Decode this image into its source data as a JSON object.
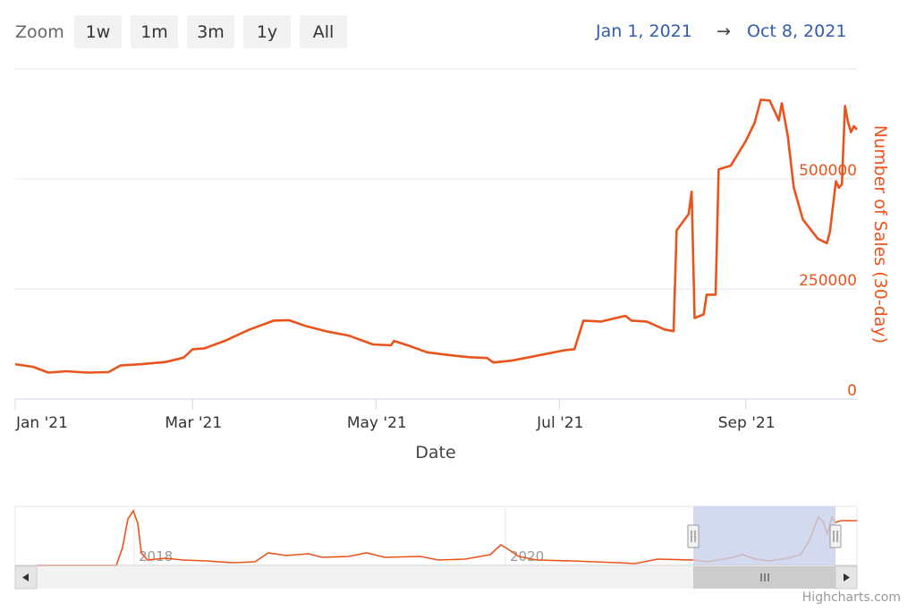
{
  "toolbar": {
    "zoom_label": "Zoom",
    "buttons": [
      "1w",
      "1m",
      "3m",
      "1y",
      "All"
    ],
    "range_from": "Jan 1, 2021",
    "range_arrow": "→",
    "range_to": "Oct 8, 2021"
  },
  "colors": {
    "series": "#e8541c",
    "axis_title": "#e8541c",
    "grid": "#e6e6e6",
    "navigator_mask": "#c8d0ea",
    "range_text": "#335cad"
  },
  "chart_data": {
    "type": "line",
    "title": "",
    "xlabel": "Date",
    "ylabel": "Number of Sales (30-day)",
    "x_tick_labels": [
      "Jan '21",
      "Mar '21",
      "May '21",
      "Jul '21",
      "Sep '21"
    ],
    "y_tick_labels": [
      "0",
      "250000",
      "500000"
    ],
    "ylim": [
      0,
      750000
    ],
    "xlim": [
      "2021-01-01",
      "2021-10-08"
    ],
    "grid": true,
    "series": [
      {
        "name": "",
        "points": [
          [
            "2021-01-01",
            79000
          ],
          [
            "2021-01-07",
            73000
          ],
          [
            "2021-01-12",
            60000
          ],
          [
            "2021-01-18",
            63000
          ],
          [
            "2021-01-25",
            60000
          ],
          [
            "2021-02-01",
            61000
          ],
          [
            "2021-02-05",
            76000
          ],
          [
            "2021-02-12",
            79000
          ],
          [
            "2021-02-20",
            84000
          ],
          [
            "2021-02-26",
            94000
          ],
          [
            "2021-03-01",
            113000
          ],
          [
            "2021-03-05",
            115000
          ],
          [
            "2021-03-12",
            133000
          ],
          [
            "2021-03-20",
            158000
          ],
          [
            "2021-03-28",
            178000
          ],
          [
            "2021-04-02",
            179000
          ],
          [
            "2021-04-08",
            165000
          ],
          [
            "2021-04-15",
            153000
          ],
          [
            "2021-04-22",
            144000
          ],
          [
            "2021-04-30",
            124000
          ],
          [
            "2021-05-06",
            122000
          ],
          [
            "2021-05-07",
            132000
          ],
          [
            "2021-05-12",
            121000
          ],
          [
            "2021-05-18",
            106000
          ],
          [
            "2021-05-25",
            100000
          ],
          [
            "2021-06-01",
            95000
          ],
          [
            "2021-06-07",
            93000
          ],
          [
            "2021-06-09",
            83000
          ],
          [
            "2021-06-15",
            87000
          ],
          [
            "2021-06-21",
            95000
          ],
          [
            "2021-06-27",
            103000
          ],
          [
            "2021-07-03",
            111000
          ],
          [
            "2021-07-06",
            113000
          ],
          [
            "2021-07-09",
            178000
          ],
          [
            "2021-07-15",
            176000
          ],
          [
            "2021-07-23",
            189000
          ],
          [
            "2021-07-25",
            178000
          ],
          [
            "2021-07-30",
            176000
          ],
          [
            "2021-08-05",
            158000
          ],
          [
            "2021-08-08",
            154000
          ],
          [
            "2021-08-09",
            383000
          ],
          [
            "2021-08-13",
            420000
          ],
          [
            "2021-08-14",
            471000
          ],
          [
            "2021-08-15",
            184000
          ],
          [
            "2021-08-18",
            192000
          ],
          [
            "2021-08-19",
            237000
          ],
          [
            "2021-08-22",
            237000
          ],
          [
            "2021-08-23",
            522000
          ],
          [
            "2021-08-27",
            530000
          ],
          [
            "2021-09-01",
            586000
          ],
          [
            "2021-09-04",
            628000
          ],
          [
            "2021-09-06",
            680000
          ],
          [
            "2021-09-09",
            678000
          ],
          [
            "2021-09-12",
            633000
          ],
          [
            "2021-09-13",
            672000
          ],
          [
            "2021-09-15",
            597000
          ],
          [
            "2021-09-17",
            480000
          ],
          [
            "2021-09-20",
            408000
          ],
          [
            "2021-09-25",
            364000
          ],
          [
            "2021-09-28",
            354000
          ],
          [
            "2021-09-29",
            380000
          ],
          [
            "2021-10-01",
            495000
          ],
          [
            "2021-10-02",
            480000
          ],
          [
            "2021-10-03",
            488000
          ],
          [
            "2021-10-04",
            666000
          ],
          [
            "2021-10-05",
            630000
          ],
          [
            "2021-10-06",
            606000
          ],
          [
            "2021-10-07",
            620000
          ],
          [
            "2021-10-08",
            612000
          ]
        ]
      }
    ],
    "navigator": {
      "year_labels": [
        "2018",
        "2020"
      ],
      "selected_range": [
        "2021-01-01",
        "2021-10-08"
      ]
    }
  },
  "credit": "Highcharts.com"
}
